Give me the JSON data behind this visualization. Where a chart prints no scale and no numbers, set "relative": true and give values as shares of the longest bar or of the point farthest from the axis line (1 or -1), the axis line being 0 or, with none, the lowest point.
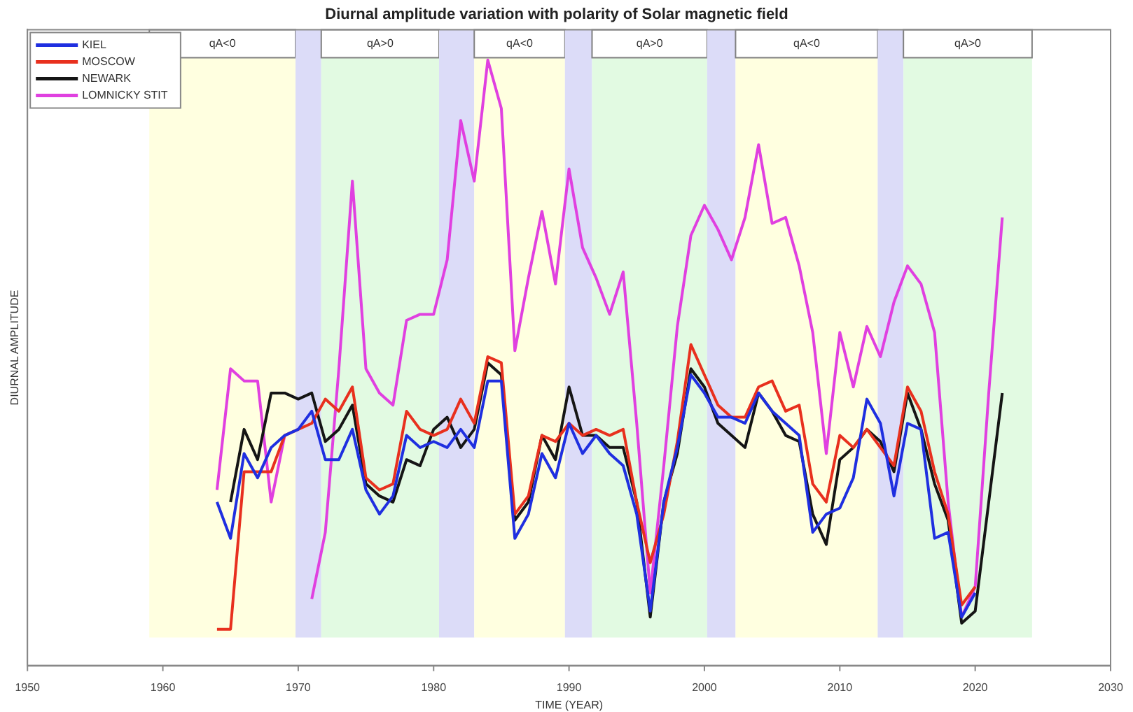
{
  "chart_data": {
    "type": "line",
    "title": "Diurnal amplitude variation with polarity of Solar magnetic field",
    "xlabel": "TIME (YEAR)",
    "ylabel": "DIURNAL AMPLITUDE",
    "relative": true,
    "tick_labels": "x",
    "legend": "top left",
    "grid": false,
    "marker": "none",
    "line_style": "solid",
    "x": [
      1964,
      1965,
      1966,
      1967,
      1968,
      1969,
      1970,
      1971,
      1972,
      1973,
      1974,
      1975,
      1976,
      1977,
      1978,
      1979,
      1980,
      1981,
      1982,
      1983,
      1984,
      1985,
      1986,
      1987,
      1988,
      1989,
      1990,
      1991,
      1992,
      1993,
      1994,
      1995,
      1996,
      1997,
      1998,
      1999,
      2000,
      2001,
      2002,
      2003,
      2004,
      2005,
      2006,
      2007,
      2008,
      2009,
      2010,
      2011,
      2012,
      2013,
      2014,
      2015,
      2016,
      2017,
      2018,
      2019,
      2020,
      2021,
      2022
    ],
    "xlim": [
      1950,
      2030
    ],
    "xticks": [
      1950,
      1960,
      1970,
      1980,
      1990,
      2000,
      2010,
      2020,
      2030
    ],
    "series": [
      {
        "name": "KIEL",
        "color": "#1f2fe0",
        "values": [
          0.27,
          0.21,
          0.35,
          0.31,
          0.36,
          0.38,
          0.39,
          0.42,
          0.34,
          0.34,
          0.39,
          0.29,
          0.25,
          0.28,
          0.38,
          0.36,
          0.37,
          0.36,
          0.39,
          0.36,
          0.47,
          0.47,
          0.21,
          0.25,
          0.35,
          0.31,
          0.4,
          0.35,
          0.38,
          0.35,
          0.33,
          0.25,
          0.09,
          0.27,
          0.36,
          0.48,
          0.45,
          0.41,
          0.41,
          0.4,
          0.45,
          0.42,
          0.4,
          0.38,
          0.22,
          0.25,
          0.26,
          0.31,
          0.44,
          0.4,
          0.28,
          0.4,
          0.39,
          0.21,
          0.22,
          0.08,
          0.12,
          null,
          null
        ]
      },
      {
        "name": "MOSCOW",
        "color": "#e8301e",
        "values": [
          0.06,
          0.06,
          0.32,
          0.32,
          0.32,
          0.38,
          0.39,
          0.4,
          0.44,
          0.42,
          0.46,
          0.31,
          0.29,
          0.3,
          0.42,
          0.39,
          0.38,
          0.39,
          0.44,
          0.4,
          0.51,
          0.5,
          0.25,
          0.28,
          0.38,
          0.37,
          0.4,
          0.38,
          0.39,
          0.38,
          0.39,
          0.27,
          0.17,
          0.25,
          0.37,
          0.53,
          0.48,
          0.43,
          0.41,
          0.41,
          0.46,
          0.47,
          0.42,
          0.43,
          0.3,
          0.27,
          0.38,
          0.36,
          0.39,
          0.36,
          0.33,
          0.46,
          0.42,
          0.32,
          0.25,
          0.1,
          0.13,
          null,
          null
        ]
      },
      {
        "name": "NEWARK",
        "color": "#151515",
        "values": [
          null,
          0.27,
          0.39,
          0.34,
          0.45,
          0.45,
          0.44,
          0.45,
          0.37,
          0.39,
          0.43,
          0.3,
          0.28,
          0.27,
          0.34,
          0.33,
          0.39,
          0.41,
          0.36,
          0.39,
          0.5,
          0.48,
          0.24,
          0.27,
          0.38,
          0.34,
          0.46,
          0.38,
          0.38,
          0.36,
          0.36,
          0.27,
          0.08,
          0.27,
          0.35,
          0.49,
          0.46,
          0.4,
          0.38,
          0.36,
          0.45,
          0.42,
          0.38,
          0.37,
          0.25,
          0.2,
          0.34,
          0.36,
          0.39,
          0.37,
          0.32,
          0.45,
          0.39,
          0.3,
          0.24,
          0.07,
          0.09,
          0.27,
          0.45
        ]
      },
      {
        "name": "LOMNICKY STIT",
        "color": "#e040e0",
        "values": [
          0.29,
          0.49,
          0.47,
          0.47,
          0.27,
          0.38,
          null,
          0.11,
          0.22,
          0.49,
          0.8,
          0.49,
          0.45,
          0.43,
          0.57,
          0.58,
          0.58,
          0.67,
          0.9,
          0.8,
          1,
          0.92,
          0.52,
          0.64,
          0.75,
          0.63,
          0.82,
          0.69,
          0.64,
          0.58,
          0.65,
          0.4,
          0.12,
          0.33,
          0.56,
          0.71,
          0.76,
          0.72,
          0.67,
          0.74,
          0.86,
          0.73,
          0.74,
          0.66,
          0.55,
          0.35,
          0.55,
          0.46,
          0.56,
          0.51,
          0.6,
          0.66,
          0.63,
          0.55,
          0.27,
          0.08,
          0.13,
          0.45,
          0.74
        ]
      }
    ],
    "bands": [
      {
        "axis": "x",
        "from": 1959,
        "to": 1969.8,
        "label": "qA<0",
        "color": "#ffffe0"
      },
      {
        "axis": "x",
        "from": 1969.8,
        "to": 1971.7,
        "color": "#dcdcf8"
      },
      {
        "axis": "x",
        "from": 1971.7,
        "to": 1980.4,
        "label": "qA>0",
        "color": "#e2fae2"
      },
      {
        "axis": "x",
        "from": 1980.4,
        "to": 1983,
        "color": "#dcdcf8"
      },
      {
        "axis": "x",
        "from": 1983,
        "to": 1989.7,
        "label": "qA<0",
        "color": "#ffffe0"
      },
      {
        "axis": "x",
        "from": 1989.7,
        "to": 1991.7,
        "color": "#dcdcf8"
      },
      {
        "axis": "x",
        "from": 1991.7,
        "to": 2000.2,
        "label": "qA>0",
        "color": "#e2fae2"
      },
      {
        "axis": "x",
        "from": 2000.2,
        "to": 2002.3,
        "color": "#dcdcf8"
      },
      {
        "axis": "x",
        "from": 2002.3,
        "to": 2012.8,
        "label": "qA<0",
        "color": "#ffffe0"
      },
      {
        "axis": "x",
        "from": 2012.8,
        "to": 2014.7,
        "color": "#dcdcf8"
      },
      {
        "axis": "x",
        "from": 2014.7,
        "to": 2024.2,
        "label": "qA>0",
        "color": "#e2fae2"
      }
    ]
  }
}
